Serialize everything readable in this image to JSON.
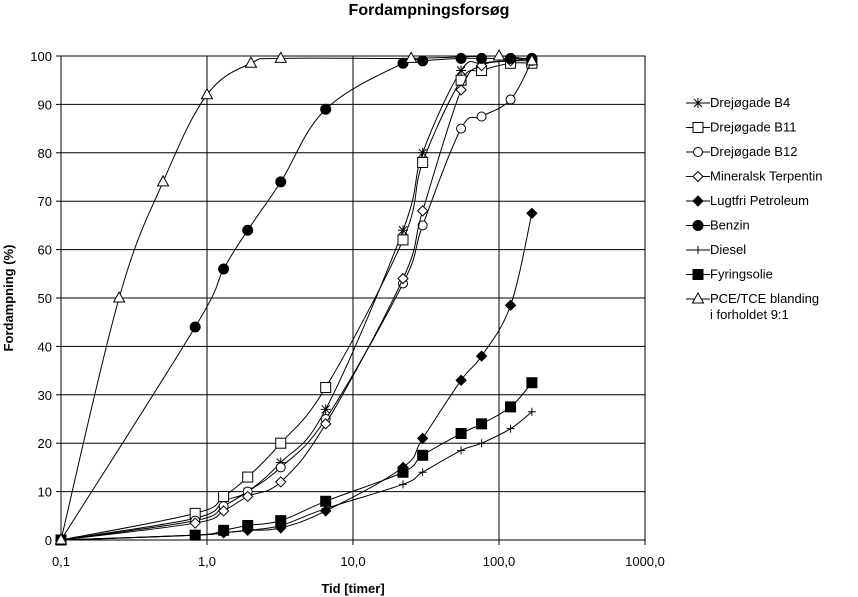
{
  "chart_data": {
    "type": "line",
    "title": "Fordampningsforsøg",
    "xlabel": "Tid [timer]",
    "ylabel": "Fordampning (%)",
    "x_scale": "log",
    "xlim": [
      0.1,
      1000
    ],
    "ylim": [
      0,
      100
    ],
    "x_ticks": [
      0.1,
      1,
      10,
      100,
      1000
    ],
    "x_tick_labels": [
      "0,1",
      "1,0",
      "10,0",
      "100,0",
      "1000,0"
    ],
    "y_ticks": [
      0,
      10,
      20,
      30,
      40,
      50,
      60,
      70,
      80,
      90,
      100
    ],
    "y_tick_labels": [
      "0",
      "10",
      "20",
      "30",
      "40",
      "50",
      "60",
      "70",
      "80",
      "90",
      "100"
    ],
    "grid": "horizontal and vertical major lines",
    "legend_position": "right",
    "series": [
      {
        "name": "Drejøgade B4",
        "marker": "asterisk",
        "points": [
          [
            0.1,
            0
          ],
          [
            0.83,
            4.5
          ],
          [
            1.3,
            8
          ],
          [
            1.9,
            10
          ],
          [
            3.2,
            16
          ],
          [
            6.5,
            27
          ],
          [
            22,
            64
          ],
          [
            30,
            80
          ],
          [
            55,
            97
          ],
          [
            76,
            98.5
          ],
          [
            120,
            99
          ],
          [
            168,
            99
          ]
        ]
      },
      {
        "name": "Drejøgade B11",
        "marker": "square-open",
        "points": [
          [
            0.1,
            0
          ],
          [
            0.83,
            5.5
          ],
          [
            1.3,
            9
          ],
          [
            1.9,
            13
          ],
          [
            3.2,
            20
          ],
          [
            6.5,
            31.5
          ],
          [
            22,
            62
          ],
          [
            30,
            78
          ],
          [
            55,
            95
          ],
          [
            76,
            97
          ],
          [
            120,
            98.5
          ],
          [
            168,
            98.5
          ]
        ]
      },
      {
        "name": "Drejøgade B12",
        "marker": "circle-open",
        "points": [
          [
            0.1,
            0
          ],
          [
            0.83,
            4
          ],
          [
            1.3,
            7
          ],
          [
            1.9,
            10
          ],
          [
            3.2,
            15
          ],
          [
            6.5,
            25
          ],
          [
            22,
            53
          ],
          [
            30,
            65
          ],
          [
            55,
            85
          ],
          [
            76,
            87.5
          ],
          [
            120,
            91
          ],
          [
            168,
            99
          ]
        ]
      },
      {
        "name": "Mineralsk Terpentin",
        "marker": "diamond-open",
        "points": [
          [
            0.1,
            0
          ],
          [
            0.83,
            3.5
          ],
          [
            1.3,
            6
          ],
          [
            1.9,
            9
          ],
          [
            3.2,
            12
          ],
          [
            6.5,
            24
          ],
          [
            22,
            54
          ],
          [
            30,
            68
          ],
          [
            55,
            93
          ],
          [
            76,
            98
          ],
          [
            120,
            99
          ],
          [
            168,
            99.5
          ]
        ]
      },
      {
        "name": "Lugtfri Petroleum",
        "marker": "diamond-filled",
        "points": [
          [
            0.1,
            0
          ],
          [
            0.83,
            1
          ],
          [
            1.3,
            1.5
          ],
          [
            1.9,
            2
          ],
          [
            3.2,
            2.5
          ],
          [
            6.5,
            6
          ],
          [
            22,
            15
          ],
          [
            30,
            21
          ],
          [
            55,
            33
          ],
          [
            76,
            38
          ],
          [
            120,
            48.5
          ],
          [
            168,
            67.5
          ]
        ]
      },
      {
        "name": "Benzin",
        "marker": "circle-filled",
        "points": [
          [
            0.1,
            0
          ],
          [
            0.83,
            44
          ],
          [
            1.3,
            56
          ],
          [
            1.9,
            64
          ],
          [
            3.2,
            74
          ],
          [
            6.5,
            89
          ],
          [
            22,
            98.5
          ],
          [
            30,
            99
          ],
          [
            55,
            99.5
          ],
          [
            76,
            99.5
          ],
          [
            120,
            99.5
          ],
          [
            168,
            99.5
          ]
        ]
      },
      {
        "name": "Diesel",
        "marker": "plus",
        "points": [
          [
            0.1,
            0
          ],
          [
            0.83,
            1
          ],
          [
            1.3,
            1.5
          ],
          [
            1.9,
            2
          ],
          [
            3.2,
            3
          ],
          [
            6.5,
            6.5
          ],
          [
            22,
            11.5
          ],
          [
            30,
            14
          ],
          [
            55,
            18.5
          ],
          [
            76,
            20
          ],
          [
            120,
            23
          ],
          [
            168,
            26.5
          ]
        ]
      },
      {
        "name": "Fyringsolie",
        "marker": "square-filled",
        "points": [
          [
            0.1,
            0
          ],
          [
            0.83,
            1
          ],
          [
            1.3,
            2
          ],
          [
            1.9,
            3
          ],
          [
            3.2,
            4
          ],
          [
            6.5,
            8
          ],
          [
            22,
            14
          ],
          [
            30,
            17.5
          ],
          [
            55,
            22
          ],
          [
            76,
            24
          ],
          [
            120,
            27.5
          ],
          [
            168,
            32.5
          ]
        ]
      },
      {
        "name": "PCE/TCE blanding i forholdet 9:1",
        "legend_lines": [
          "PCE/TCE blanding",
          "i forholdet 9:1"
        ],
        "marker": "triangle-open",
        "points": [
          [
            0.1,
            0
          ],
          [
            0.25,
            50
          ],
          [
            0.5,
            74
          ],
          [
            1,
            92
          ],
          [
            2,
            98.5
          ],
          [
            3.2,
            99.5
          ],
          [
            25,
            99.5
          ],
          [
            100,
            100
          ],
          [
            168,
            99
          ]
        ]
      }
    ]
  }
}
